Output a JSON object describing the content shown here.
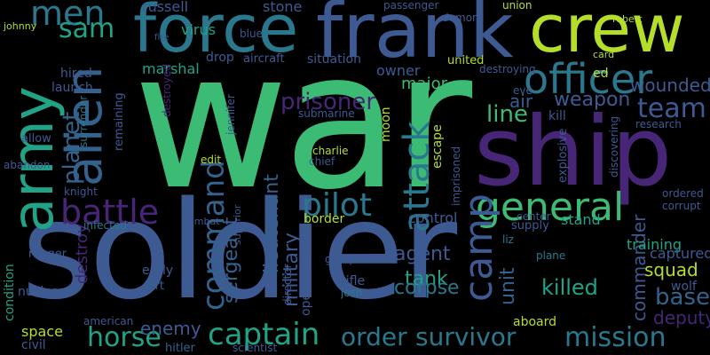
{
  "colors": {
    "background": "#000000",
    "green": "#3cbb75",
    "lime": "#b5de2b",
    "teal": "#20a386",
    "blue": "#3e5a93",
    "slate": "#33638d",
    "cyan": "#2a788e",
    "purple": "#482677",
    "lavender": "#6b5aa6"
  },
  "words": [
    {
      "text": "war"
    },
    {
      "text": "soldier"
    },
    {
      "text": "ship"
    },
    {
      "text": "frank"
    },
    {
      "text": "force"
    },
    {
      "text": "crew"
    },
    {
      "text": "army"
    },
    {
      "text": "alien"
    },
    {
      "text": "officer"
    },
    {
      "text": "men"
    },
    {
      "text": "sam"
    },
    {
      "text": "battle"
    },
    {
      "text": "attack"
    },
    {
      "text": "general"
    },
    {
      "text": "pilot"
    },
    {
      "text": "camp"
    },
    {
      "text": "command"
    },
    {
      "text": "planet"
    },
    {
      "text": "team"
    },
    {
      "text": "weapon"
    },
    {
      "text": "line"
    },
    {
      "text": "prisoner"
    },
    {
      "text": "captain"
    },
    {
      "text": "horse"
    },
    {
      "text": "order"
    },
    {
      "text": "survivor"
    },
    {
      "text": "mission"
    },
    {
      "text": "base"
    },
    {
      "text": "deputy"
    },
    {
      "text": "squad"
    },
    {
      "text": "killed"
    },
    {
      "text": "tank"
    },
    {
      "text": "agent"
    },
    {
      "text": "corpse"
    },
    {
      "text": "lieutenant"
    },
    {
      "text": "military"
    },
    {
      "text": "sergeant"
    },
    {
      "text": "commander"
    },
    {
      "text": "unit"
    },
    {
      "text": "wounded"
    },
    {
      "text": "enemy"
    },
    {
      "text": "russell"
    },
    {
      "text": "virus"
    },
    {
      "text": "stone"
    },
    {
      "text": "marshal"
    },
    {
      "text": "aircraft"
    },
    {
      "text": "situation"
    },
    {
      "text": "owner"
    },
    {
      "text": "major"
    },
    {
      "text": "united"
    },
    {
      "text": "launch"
    },
    {
      "text": "hired"
    },
    {
      "text": "remaining"
    },
    {
      "text": "planet2"
    },
    {
      "text": "destroy"
    },
    {
      "text": "ranger"
    },
    {
      "text": "condition"
    },
    {
      "text": "space"
    },
    {
      "text": "civil"
    },
    {
      "text": "nuclear"
    },
    {
      "text": "infected"
    },
    {
      "text": "early"
    },
    {
      "text": "fort"
    },
    {
      "text": "hitler"
    },
    {
      "text": "american"
    },
    {
      "text": "scientist"
    },
    {
      "text": "operation"
    },
    {
      "text": "director"
    },
    {
      "text": "border"
    },
    {
      "text": "control"
    },
    {
      "text": "stand"
    },
    {
      "text": "training"
    },
    {
      "text": "captured"
    },
    {
      "text": "wolf"
    },
    {
      "text": "supply"
    },
    {
      "text": "liz"
    },
    {
      "text": "plane"
    },
    {
      "text": "rifle"
    },
    {
      "text": "josh"
    },
    {
      "text": "group"
    },
    {
      "text": "charlie"
    },
    {
      "text": "chief"
    },
    {
      "text": "escape"
    },
    {
      "text": "moon"
    },
    {
      "text": "explosive"
    },
    {
      "text": "kill"
    },
    {
      "text": "research"
    },
    {
      "text": "allow"
    },
    {
      "text": "surrender"
    },
    {
      "text": "abandon"
    },
    {
      "text": "knight"
    },
    {
      "text": "drop"
    },
    {
      "text": "passenger"
    },
    {
      "text": "demon"
    },
    {
      "text": "union"
    },
    {
      "text": "fire"
    },
    {
      "text": "blue"
    },
    {
      "text": "destroying"
    },
    {
      "text": "destroyed"
    },
    {
      "text": "submarine"
    },
    {
      "text": "edit"
    },
    {
      "text": "jennifer"
    },
    {
      "text": "imprisoned"
    },
    {
      "text": "discovering"
    },
    {
      "text": "ordered"
    },
    {
      "text": "corrupt"
    },
    {
      "text": "aboard"
    },
    {
      "text": "superior"
    },
    {
      "text": "combat"
    },
    {
      "text": "center"
    },
    {
      "text": "air"
    },
    {
      "text": "eve"
    },
    {
      "text": "card"
    },
    {
      "text": "johnny"
    },
    {
      "text": "robert"
    },
    {
      "text": "ed"
    }
  ]
}
